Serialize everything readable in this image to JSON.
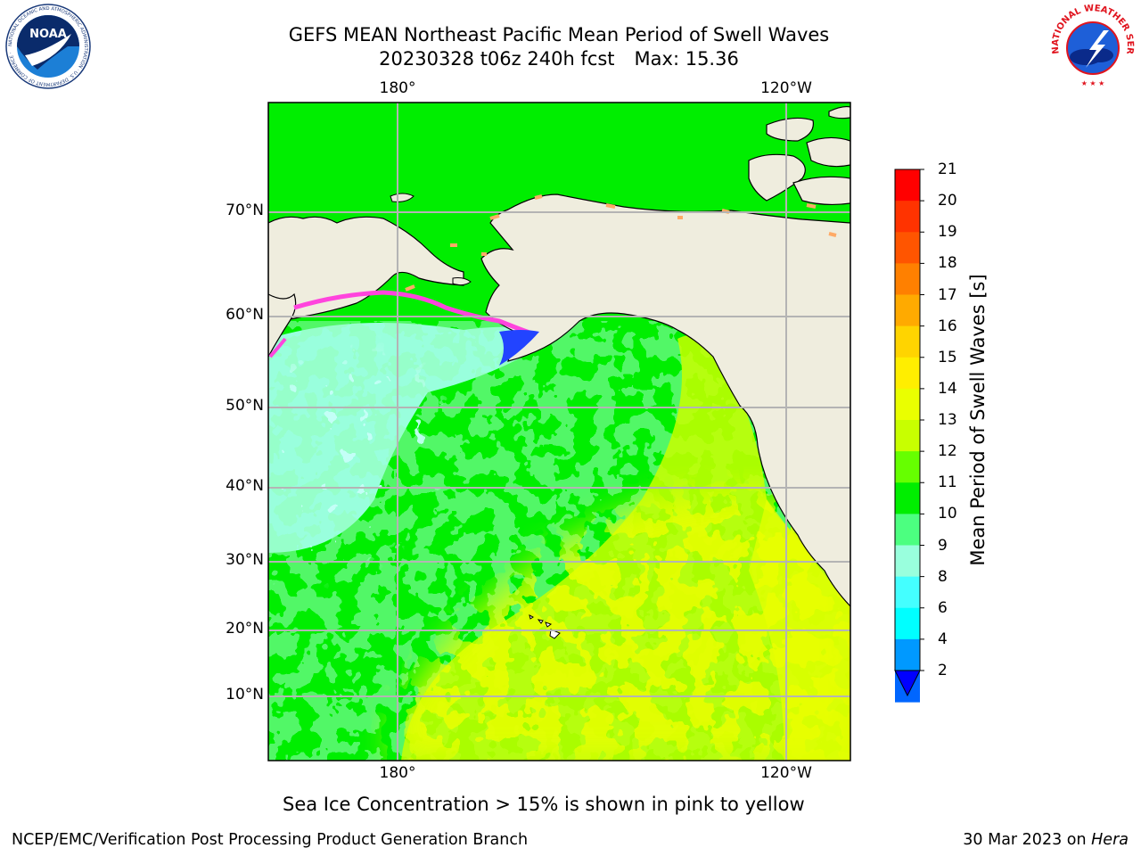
{
  "title": {
    "line1": "GEFS MEAN Northeast Pacific Mean Period of Swell Waves",
    "line2_run": "20230328 t06z 240h fcst",
    "line2_max": "Max: 15.36"
  },
  "map": {
    "lon_labels_top": [
      "180°",
      "120°W"
    ],
    "lon_labels_bottom": [
      "180°",
      "120°W"
    ],
    "lat_labels": [
      "70°N",
      "60°N",
      "50°N",
      "40°N",
      "30°N",
      "20°N",
      "10°N"
    ],
    "colors": {
      "land": "#efedde",
      "coast": "#000000",
      "grid": "#b4b4b4",
      "ice_pink": "#ff44dd",
      "ice_orange": "#ffaa66"
    }
  },
  "colorbar": {
    "label": "Mean Period of Swell Waves [s]",
    "ticks": [
      "21",
      "20",
      "19",
      "18",
      "17",
      "16",
      "15",
      "14",
      "13",
      "12",
      "11",
      "10",
      "9",
      "8",
      "6",
      "4",
      "2"
    ],
    "colors_top_to_bottom": [
      "#ff0000",
      "#ff3300",
      "#ff5500",
      "#ff8000",
      "#ffaa00",
      "#ffd400",
      "#ffee00",
      "#eaff00",
      "#c8ff00",
      "#66ff00",
      "#00ee00",
      "#4cff80",
      "#99ffdd",
      "#44ffff",
      "#00ffff",
      "#0099ff",
      "#0066ff"
    ],
    "extend_color": "#0000ff"
  },
  "footnote": "Sea Ice Concentration > 15% is shown in pink to yellow",
  "credit_left": "NCEP/EMC/Verification Post Processing Product Generation Branch",
  "credit_right_date": "30 Mar 2023 on ",
  "credit_right_machine": "Hera",
  "logos": {
    "noaa_text": "NOAA",
    "noaa_ring": "NATIONAL OCEANIC AND ATMOSPHERIC ADMINISTRATION · U.S. DEPARTMENT OF COMMERCE ·",
    "nws_ring": "NATIONAL WEATHER SERVICE"
  }
}
